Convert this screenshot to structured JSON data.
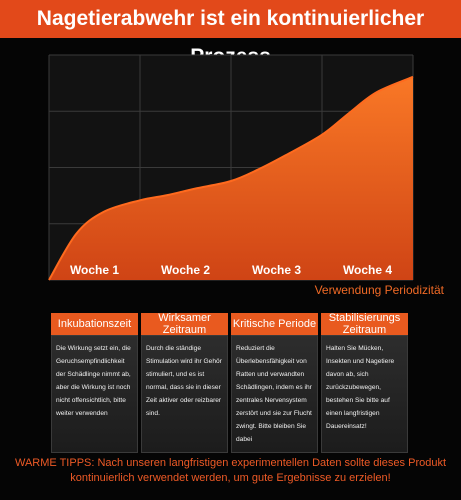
{
  "chart_data": {
    "type": "area",
    "title": "Nagetierabwehr ist ein kontinuierlicher Prozess",
    "xlabel": "Verwendung Periodizität",
    "ylabel": "",
    "categories": [
      "Woche 1",
      "Woche 2",
      "Woche 3",
      "Woche 4"
    ],
    "x": [
      0,
      0.3,
      0.6,
      1,
      1.3,
      1.6,
      2,
      2.3,
      2.6,
      3,
      3.3,
      3.6,
      4
    ],
    "y": [
      0,
      0.36,
      0.53,
      0.62,
      0.66,
      0.71,
      0.77,
      0.86,
      0.97,
      1.13,
      1.3,
      1.46,
      1.58
    ],
    "xlim": [
      0,
      4
    ],
    "ylim": [
      0,
      1.75
    ],
    "grid": true,
    "colors": {
      "fill_top": "#f97826",
      "fill_bottom": "#cf4415",
      "line": "#ff6a1e",
      "bg": "#050505",
      "title_bg": "#e2491a"
    }
  },
  "cards": [
    {
      "title": "Inkubationszeit",
      "text": "Die Wirkung setzt ein, die Geruchsempfindlichkeit der Schädlinge nimmt ab, aber die Wirkung ist noch nicht offensichtlich, bitte weiter verwenden"
    },
    {
      "title": "Wirksamer Zeitraum",
      "text": "Durch die ständige Stimulation wird ihr Gehör stimuliert, und es ist normal, dass sie in dieser Zeit aktiver oder reizbarer sind."
    },
    {
      "title": "Kritische Periode",
      "text": "Reduziert die Überlebensfähigkeit von Ratten und verwandten Schädlingen, indem es ihr zentrales Nervensystem zerstört und sie zur Flucht zwingt. Bitte bleiben Sie dabei"
    },
    {
      "title": "Stabilisierungs Zeitraum",
      "text": "Halten Sie Mücken, Insekten und Nagetiere davon ab, sich zurückzubewegen, bestehen Sie bitte auf einen langfristigen Dauereinsatz!"
    }
  ],
  "tips": "WARME TIPPS: Nach unseren langfristigen experimentellen Daten sollte dieses Produkt kontinuierlich verwendet werden, um gute Ergebnisse zu erzielen!"
}
